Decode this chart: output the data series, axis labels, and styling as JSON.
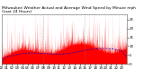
{
  "title": "Milwaukee Weather Actual and Average Wind Speed by Minute mph (Last 24 Hours)",
  "n_points": 1440,
  "actual_color": "#ff0000",
  "avg_color": "#0000cc",
  "background_color": "#ffffff",
  "plot_background": "#ffffff",
  "grid_color": "#aaaaaa",
  "title_fontsize": 3.2,
  "tick_fontsize": 2.8,
  "ylim": [
    0,
    28
  ],
  "yticks": [
    0,
    5,
    10,
    15,
    20,
    25
  ],
  "ytick_labels": [
    "0",
    "5",
    "10",
    "15",
    "20",
    "25"
  ],
  "figsize": [
    1.6,
    0.87
  ],
  "dpi": 100
}
